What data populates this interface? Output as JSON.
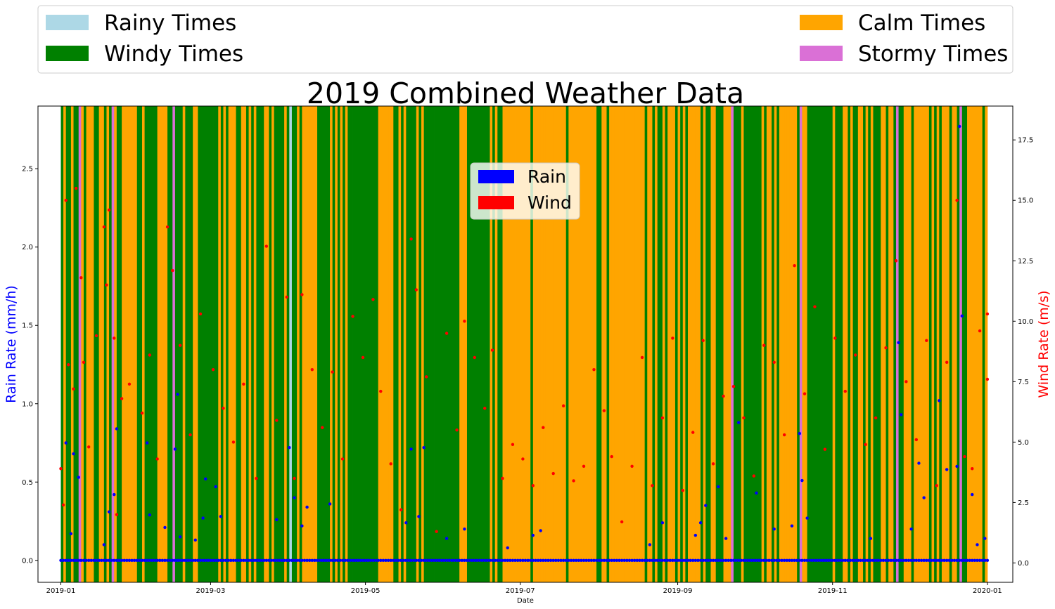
{
  "chart_data": {
    "type": "scatter",
    "title": "2019 Combined Weather Data",
    "xlabel": "Date",
    "ylabel_left": "Rain Rate (mm/h)",
    "ylabel_right": "Wind Rate (m/s)",
    "x_ticks": [
      "2019-01",
      "2019-03",
      "2019-05",
      "2019-07",
      "2019-09",
      "2019-11",
      "2020-01"
    ],
    "y_left_ticks": [
      "0.0",
      "0.5",
      "1.0",
      "1.5",
      "2.0",
      "2.5"
    ],
    "y_right_ticks": [
      "0.0",
      "2.5",
      "5.0",
      "7.5",
      "10.0",
      "12.5",
      "15.0",
      "17.5"
    ],
    "y_left_range": [
      -0.14,
      2.9
    ],
    "y_right_range": [
      -0.8,
      18.9
    ],
    "x_range_days": [
      -9,
      375
    ],
    "category_legend": {
      "location": "top (outside plot)",
      "entries": [
        {
          "label": "Rainy Times",
          "color": "#add8e6"
        },
        {
          "label": "Calm Times",
          "color": "#ffa500"
        },
        {
          "label": "Windy Times",
          "color": "#008000"
        },
        {
          "label": "Stormy Times",
          "color": "#da70d6"
        }
      ]
    },
    "series_legend": {
      "location": "upper-center",
      "entries": [
        {
          "label": "Rain",
          "color": "#0000ff"
        },
        {
          "label": "Wind",
          "color": "#ff0000"
        }
      ]
    },
    "background_bands": [
      {
        "category": "Calm Times",
        "start": "2019-06-24",
        "end": "2019-07-05"
      },
      {
        "category": "Calm Times",
        "start": "2019-07-20",
        "end": "2019-07-28"
      },
      {
        "category": "Calm Times",
        "start": "2019-08-06",
        "end": "2019-08-16"
      },
      {
        "category": "Calm Times",
        "start": "2019-05-06",
        "end": "2019-05-10"
      },
      {
        "category": "Stormy Times",
        "start": "2019-01-08",
        "end": "2019-01-09"
      },
      {
        "category": "Stormy Times",
        "start": "2019-01-21",
        "end": "2019-01-22"
      },
      {
        "category": "Stormy Times",
        "start": "2019-02-14",
        "end": "2019-02-15"
      },
      {
        "category": "Rainy Times",
        "start": "2019-04-01",
        "end": "2019-04-02"
      },
      {
        "category": "Stormy Times",
        "start": "2019-09-22",
        "end": "2019-09-23"
      },
      {
        "category": "Stormy Times",
        "start": "2019-10-19",
        "end": "2019-10-20"
      },
      {
        "category": "Stormy Times",
        "start": "2019-11-26",
        "end": "2019-11-27"
      },
      {
        "category": "Stormy Times",
        "start": "2019-12-21",
        "end": "2019-12-22"
      }
    ],
    "series": [
      {
        "name": "Rain",
        "axis": "left",
        "color": "#0000ff",
        "baseline_value": 0.0,
        "points": [
          [
            "2019-01-03",
            0.75
          ],
          [
            "2019-01-05",
            0.17
          ],
          [
            "2019-01-06",
            0.68
          ],
          [
            "2019-01-08",
            0.53
          ],
          [
            "2019-01-18",
            0.1
          ],
          [
            "2019-01-20",
            0.31
          ],
          [
            "2019-01-22",
            0.42
          ],
          [
            "2019-01-23",
            0.84
          ],
          [
            "2019-02-04",
            0.75
          ],
          [
            "2019-02-05",
            0.29
          ],
          [
            "2019-02-11",
            0.21
          ],
          [
            "2019-02-15",
            0.71
          ],
          [
            "2019-02-16",
            1.06
          ],
          [
            "2019-02-17",
            0.15
          ],
          [
            "2019-02-23",
            0.13
          ],
          [
            "2019-02-26",
            0.27
          ],
          [
            "2019-02-27",
            0.52
          ],
          [
            "2019-03-03",
            0.47
          ],
          [
            "2019-03-05",
            0.28
          ],
          [
            "2019-03-27",
            0.26
          ],
          [
            "2019-04-01",
            0.72
          ],
          [
            "2019-04-03",
            0.4
          ],
          [
            "2019-04-06",
            0.22
          ],
          [
            "2019-04-08",
            0.34
          ],
          [
            "2019-04-17",
            0.36
          ],
          [
            "2019-05-17",
            0.24
          ],
          [
            "2019-05-19",
            0.71
          ],
          [
            "2019-05-22",
            0.28
          ],
          [
            "2019-05-24",
            0.72
          ],
          [
            "2019-06-02",
            0.14
          ],
          [
            "2019-06-09",
            0.2
          ],
          [
            "2019-06-26",
            0.08
          ],
          [
            "2019-07-06",
            0.16
          ],
          [
            "2019-07-09",
            0.19
          ],
          [
            "2019-08-21",
            0.1
          ],
          [
            "2019-08-26",
            0.24
          ],
          [
            "2019-09-08",
            0.16
          ],
          [
            "2019-09-10",
            0.24
          ],
          [
            "2019-09-12",
            0.35
          ],
          [
            "2019-09-17",
            0.47
          ],
          [
            "2019-09-20",
            0.14
          ],
          [
            "2019-09-25",
            0.88
          ],
          [
            "2019-10-02",
            0.43
          ],
          [
            "2019-10-09",
            0.2
          ],
          [
            "2019-10-16",
            0.22
          ],
          [
            "2019-10-19",
            0.81
          ],
          [
            "2019-10-20",
            0.51
          ],
          [
            "2019-10-22",
            0.27
          ],
          [
            "2019-11-16",
            0.14
          ],
          [
            "2019-11-27",
            1.39
          ],
          [
            "2019-11-28",
            0.93
          ],
          [
            "2019-12-02",
            0.2
          ],
          [
            "2019-12-05",
            0.62
          ],
          [
            "2019-12-07",
            0.4
          ],
          [
            "2019-12-13",
            1.02
          ],
          [
            "2019-12-16",
            0.58
          ],
          [
            "2019-12-20",
            0.6
          ],
          [
            "2019-12-21",
            2.77
          ],
          [
            "2019-12-22",
            1.56
          ],
          [
            "2019-12-26",
            0.42
          ],
          [
            "2019-12-28",
            0.1
          ],
          [
            "2019-12-31",
            0.14
          ]
        ]
      },
      {
        "name": "Wind",
        "axis": "right",
        "color": "#ff0000",
        "points": [
          [
            "2019-01-01",
            3.9
          ],
          [
            "2019-01-02",
            2.4
          ],
          [
            "2019-01-03",
            15.0
          ],
          [
            "2019-01-04",
            8.2
          ],
          [
            "2019-01-06",
            7.2
          ],
          [
            "2019-01-07",
            15.5
          ],
          [
            "2019-01-09",
            11.8
          ],
          [
            "2019-01-10",
            8.3
          ],
          [
            "2019-01-12",
            4.8
          ],
          [
            "2019-01-15",
            9.4
          ],
          [
            "2019-01-18",
            13.9
          ],
          [
            "2019-01-19",
            11.5
          ],
          [
            "2019-01-20",
            14.6
          ],
          [
            "2019-01-22",
            9.3
          ],
          [
            "2019-01-23",
            2.0
          ],
          [
            "2019-01-25",
            6.8
          ],
          [
            "2019-01-28",
            7.4
          ],
          [
            "2019-02-02",
            6.2
          ],
          [
            "2019-02-05",
            8.6
          ],
          [
            "2019-02-08",
            4.3
          ],
          [
            "2019-02-12",
            13.9
          ],
          [
            "2019-02-14",
            12.1
          ],
          [
            "2019-02-17",
            9.0
          ],
          [
            "2019-02-21",
            5.3
          ],
          [
            "2019-02-25",
            10.3
          ],
          [
            "2019-03-02",
            8.0
          ],
          [
            "2019-03-06",
            6.4
          ],
          [
            "2019-03-10",
            5.0
          ],
          [
            "2019-03-14",
            7.4
          ],
          [
            "2019-03-19",
            3.5
          ],
          [
            "2019-03-23",
            13.1
          ],
          [
            "2019-03-27",
            5.9
          ],
          [
            "2019-03-31",
            11.0
          ],
          [
            "2019-04-03",
            3.5
          ],
          [
            "2019-04-06",
            11.1
          ],
          [
            "2019-04-10",
            8.0
          ],
          [
            "2019-04-14",
            5.6
          ],
          [
            "2019-04-18",
            7.9
          ],
          [
            "2019-04-22",
            4.3
          ],
          [
            "2019-04-26",
            10.2
          ],
          [
            "2019-04-30",
            8.5
          ],
          [
            "2019-05-04",
            10.9
          ],
          [
            "2019-05-07",
            7.1
          ],
          [
            "2019-05-11",
            4.1
          ],
          [
            "2019-05-15",
            2.2
          ],
          [
            "2019-05-19",
            13.4
          ],
          [
            "2019-05-21",
            11.3
          ],
          [
            "2019-05-25",
            7.7
          ],
          [
            "2019-05-29",
            1.3
          ],
          [
            "2019-06-02",
            9.5
          ],
          [
            "2019-06-06",
            5.5
          ],
          [
            "2019-06-09",
            10.0
          ],
          [
            "2019-06-13",
            8.5
          ],
          [
            "2019-06-17",
            6.4
          ],
          [
            "2019-06-20",
            8.8
          ],
          [
            "2019-06-24",
            3.5
          ],
          [
            "2019-06-28",
            4.9
          ],
          [
            "2019-07-02",
            4.3
          ],
          [
            "2019-07-06",
            3.2
          ],
          [
            "2019-07-10",
            5.6
          ],
          [
            "2019-07-14",
            3.7
          ],
          [
            "2019-07-18",
            6.5
          ],
          [
            "2019-07-22",
            3.4
          ],
          [
            "2019-07-26",
            4.0
          ],
          [
            "2019-07-30",
            8.0
          ],
          [
            "2019-08-03",
            6.3
          ],
          [
            "2019-08-06",
            4.4
          ],
          [
            "2019-08-10",
            1.7
          ],
          [
            "2019-08-14",
            4.0
          ],
          [
            "2019-08-18",
            8.5
          ],
          [
            "2019-08-22",
            3.2
          ],
          [
            "2019-08-26",
            6.0
          ],
          [
            "2019-08-30",
            9.3
          ],
          [
            "2019-09-03",
            3.0
          ],
          [
            "2019-09-07",
            5.4
          ],
          [
            "2019-09-11",
            9.2
          ],
          [
            "2019-09-15",
            4.1
          ],
          [
            "2019-09-19",
            6.9
          ],
          [
            "2019-09-23",
            7.3
          ],
          [
            "2019-09-27",
            6.0
          ],
          [
            "2019-10-01",
            3.6
          ],
          [
            "2019-10-05",
            9.0
          ],
          [
            "2019-10-09",
            8.3
          ],
          [
            "2019-10-13",
            5.3
          ],
          [
            "2019-10-17",
            12.3
          ],
          [
            "2019-10-21",
            7.0
          ],
          [
            "2019-10-25",
            10.6
          ],
          [
            "2019-10-29",
            4.7
          ],
          [
            "2019-11-02",
            9.3
          ],
          [
            "2019-11-06",
            7.1
          ],
          [
            "2019-11-10",
            8.6
          ],
          [
            "2019-11-14",
            4.9
          ],
          [
            "2019-11-18",
            6.0
          ],
          [
            "2019-11-22",
            8.9
          ],
          [
            "2019-11-26",
            12.5
          ],
          [
            "2019-11-30",
            7.5
          ],
          [
            "2019-12-04",
            5.1
          ],
          [
            "2019-12-08",
            9.2
          ],
          [
            "2019-12-12",
            3.2
          ],
          [
            "2019-12-16",
            8.3
          ],
          [
            "2019-12-20",
            15.0
          ],
          [
            "2019-12-23",
            4.4
          ],
          [
            "2019-12-26",
            3.9
          ],
          [
            "2019-12-29",
            9.6
          ],
          [
            "2020-01-01",
            10.3
          ],
          [
            "2020-01-01",
            7.6
          ]
        ]
      }
    ]
  }
}
